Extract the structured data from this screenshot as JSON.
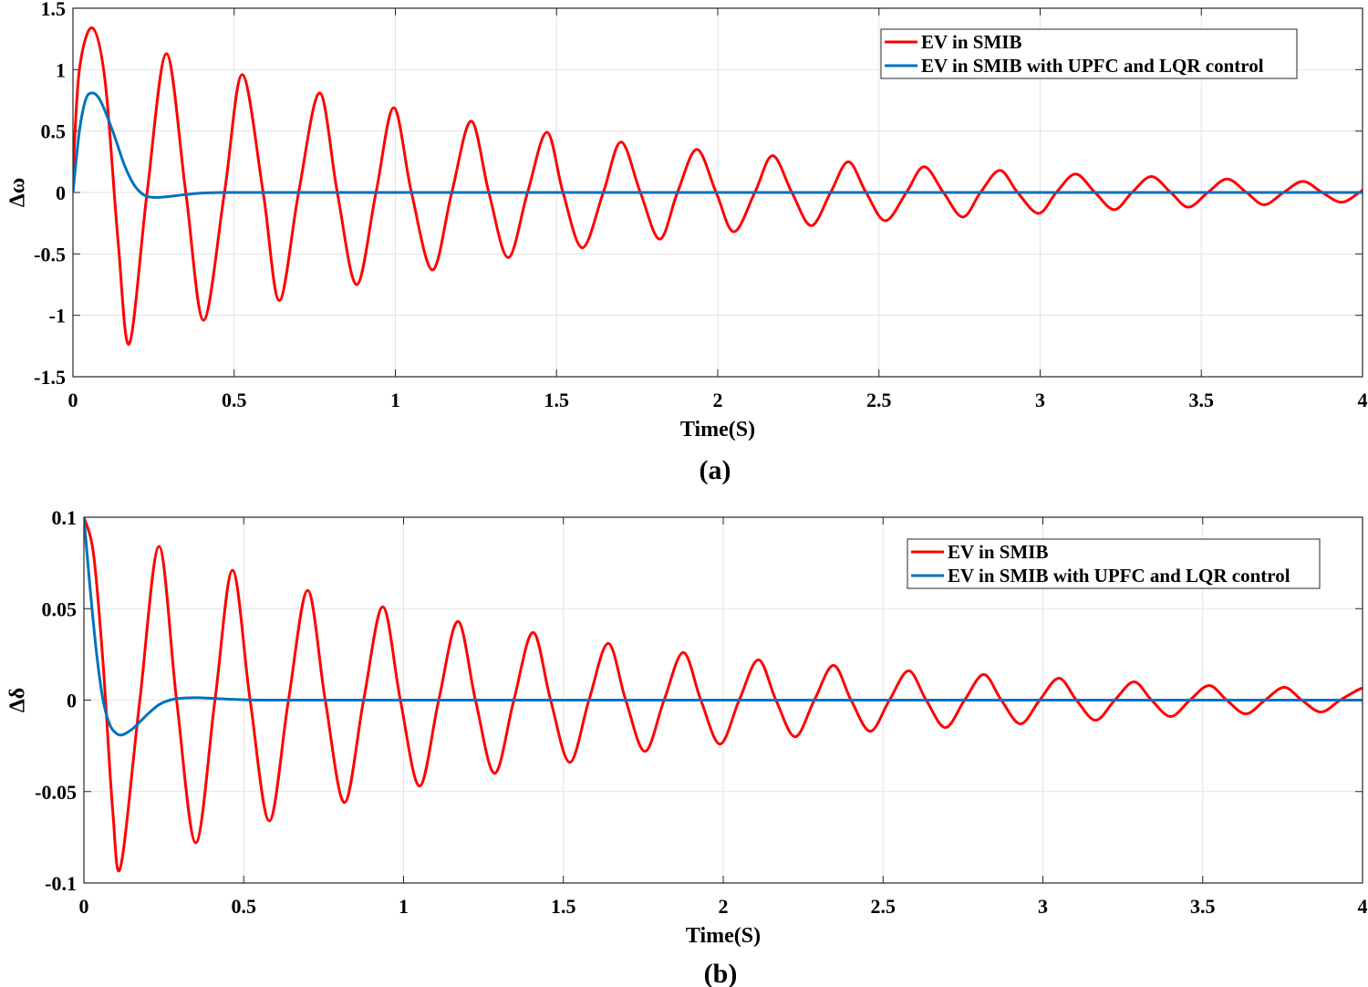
{
  "colors": {
    "ev_smib": "#ff0000",
    "ev_upfc_lqr": "#0072bd",
    "grid": "#e3e3e3",
    "axes": "#262626"
  },
  "chart_data": [
    {
      "type": "line",
      "panel_caption": "(a)",
      "xlabel": "Time(S)",
      "ylabel": "Δω",
      "xlim": [
        0,
        4
      ],
      "ylim": [
        -1.5,
        1.5
      ],
      "xticks": [
        0,
        0.5,
        1,
        1.5,
        2,
        2.5,
        3,
        3.5,
        4
      ],
      "xtick_labels": [
        "0",
        "0.5",
        "1",
        "1.5",
        "2",
        "2.5",
        "3",
        "3.5",
        "4"
      ],
      "yticks": [
        -1.5,
        -1,
        -0.5,
        0,
        0.5,
        1,
        1.5
      ],
      "ytick_labels": [
        "-1.5",
        "-1",
        "-0.5",
        "0",
        "0.5",
        "1",
        "1.5"
      ],
      "grid": true,
      "legend_position": "top-right",
      "series": [
        {
          "name": "EV in SMIB",
          "color": "#ff0000",
          "x": [
            0.0,
            0.02,
            0.06,
            0.1,
            0.14,
            0.175,
            0.23,
            0.29,
            0.35,
            0.405,
            0.47,
            0.525,
            0.59,
            0.64,
            0.7,
            0.765,
            0.82,
            0.88,
            0.94,
            0.995,
            1.05,
            1.115,
            1.175,
            1.235,
            1.29,
            1.35,
            1.41,
            1.47,
            1.52,
            1.58,
            1.645,
            1.7,
            1.76,
            1.82,
            1.875,
            1.935,
            1.995,
            2.05,
            2.115,
            2.17,
            2.23,
            2.29,
            2.35,
            2.405,
            2.46,
            2.52,
            2.585,
            2.64,
            2.7,
            2.76,
            2.815,
            2.875,
            2.93,
            2.995,
            3.05,
            3.11,
            3.17,
            3.23,
            3.285,
            3.345,
            3.405,
            3.46,
            3.52,
            3.58,
            3.64,
            3.695,
            3.755,
            3.815,
            3.875,
            3.935,
            3.99,
            4.0
          ],
          "y": [
            0.15,
            1.0,
            1.34,
            0.9,
            -0.4,
            -1.23,
            0.0,
            1.13,
            0.0,
            -1.04,
            0.0,
            0.96,
            0.0,
            -0.88,
            0.0,
            0.81,
            0.0,
            -0.75,
            0.0,
            0.69,
            0.0,
            -0.63,
            0.0,
            0.58,
            0.0,
            -0.53,
            0.0,
            0.49,
            0.0,
            -0.45,
            0.0,
            0.41,
            0.0,
            -0.38,
            0.0,
            0.35,
            0.0,
            -0.32,
            0.0,
            0.3,
            0.0,
            -0.27,
            0.0,
            0.25,
            0.0,
            -0.23,
            0.0,
            0.21,
            0.0,
            -0.2,
            0.0,
            0.18,
            0.0,
            -0.17,
            0.0,
            0.15,
            0.0,
            -0.14,
            0.0,
            0.13,
            0.0,
            -0.12,
            0.0,
            0.11,
            0.0,
            -0.1,
            0.0,
            0.09,
            0.0,
            -0.08,
            0.0,
            0.02
          ]
        },
        {
          "name": "EV in SMIB with UPFC and LQR control",
          "color": "#0072bd",
          "x": [
            0.0,
            0.02,
            0.04,
            0.06,
            0.08,
            0.1,
            0.13,
            0.16,
            0.19,
            0.22,
            0.25,
            0.29,
            0.34,
            0.4,
            0.47,
            0.55,
            1.0,
            2.0,
            3.0,
            4.0
          ],
          "y": [
            0.0,
            0.5,
            0.76,
            0.81,
            0.77,
            0.66,
            0.45,
            0.22,
            0.06,
            -0.02,
            -0.04,
            -0.035,
            -0.02,
            -0.005,
            0.0,
            0.0,
            0.0,
            0.0,
            0.0,
            0.0
          ]
        }
      ]
    },
    {
      "type": "line",
      "panel_caption": "(b)",
      "xlabel": "Time(S)",
      "ylabel": "Δδ",
      "xlim": [
        0,
        4
      ],
      "ylim": [
        -0.1,
        0.1
      ],
      "xticks": [
        0,
        0.5,
        1,
        1.5,
        2,
        2.5,
        3,
        3.5,
        4
      ],
      "xtick_labels": [
        "0",
        "0.5",
        "1",
        "1.5",
        "2",
        "2.5",
        "3",
        "3.5",
        "4"
      ],
      "yticks": [
        -0.1,
        -0.05,
        0,
        0.05,
        0.1
      ],
      "ytick_labels": [
        "-0.1",
        "-0.05",
        "0",
        "0.05",
        "0.1"
      ],
      "grid": true,
      "legend_position": "top-right",
      "series": [
        {
          "name": "EV in SMIB",
          "color": "#ff0000",
          "x": [
            0.0,
            0.03,
            0.06,
            0.09,
            0.115,
            0.175,
            0.235,
            0.29,
            0.35,
            0.41,
            0.465,
            0.52,
            0.58,
            0.64,
            0.7,
            0.755,
            0.815,
            0.875,
            0.935,
            0.99,
            1.05,
            1.11,
            1.17,
            1.225,
            1.285,
            1.345,
            1.405,
            1.46,
            1.52,
            1.58,
            1.64,
            1.695,
            1.755,
            1.815,
            1.875,
            1.93,
            1.99,
            2.05,
            2.11,
            2.165,
            2.225,
            2.285,
            2.345,
            2.4,
            2.46,
            2.52,
            2.58,
            2.635,
            2.695,
            2.755,
            2.815,
            2.87,
            2.93,
            2.99,
            3.05,
            3.105,
            3.165,
            3.225,
            3.285,
            3.34,
            3.4,
            3.46,
            3.52,
            3.575,
            3.635,
            3.695,
            3.755,
            3.81,
            3.87,
            3.93,
            3.99,
            4.0
          ],
          "y": [
            0.1,
            0.08,
            0.02,
            -0.06,
            -0.091,
            0.0,
            0.084,
            0.0,
            -0.078,
            0.0,
            0.071,
            0.0,
            -0.066,
            0.0,
            0.06,
            0.0,
            -0.056,
            0.0,
            0.051,
            0.0,
            -0.047,
            0.0,
            0.043,
            0.0,
            -0.04,
            0.0,
            0.037,
            0.0,
            -0.034,
            0.0,
            0.031,
            0.0,
            -0.028,
            0.0,
            0.026,
            0.0,
            -0.024,
            0.0,
            0.022,
            0.0,
            -0.02,
            0.0,
            0.019,
            0.0,
            -0.017,
            0.0,
            0.016,
            0.0,
            -0.015,
            0.0,
            0.014,
            0.0,
            -0.013,
            0.0,
            0.012,
            0.0,
            -0.011,
            0.0,
            0.01,
            0.0,
            -0.009,
            0.0,
            0.008,
            0.0,
            -0.0075,
            0.0,
            0.007,
            0.0,
            -0.0065,
            0.0,
            0.006,
            0.006
          ]
        },
        {
          "name": "EV in SMIB with UPFC and LQR control",
          "color": "#0072bd",
          "x": [
            0.0,
            0.02,
            0.04,
            0.06,
            0.08,
            0.1,
            0.12,
            0.15,
            0.18,
            0.21,
            0.24,
            0.28,
            0.32,
            0.36,
            0.42,
            0.5,
            0.6,
            1.0,
            2.0,
            3.0,
            4.0
          ],
          "y": [
            0.1,
            0.06,
            0.025,
            0.0,
            -0.013,
            -0.018,
            -0.019,
            -0.016,
            -0.011,
            -0.006,
            -0.002,
            0.0005,
            0.0012,
            0.0013,
            0.0008,
            0.0002,
            0.0,
            0.0,
            0.0,
            0.0,
            0.0
          ]
        }
      ]
    }
  ]
}
